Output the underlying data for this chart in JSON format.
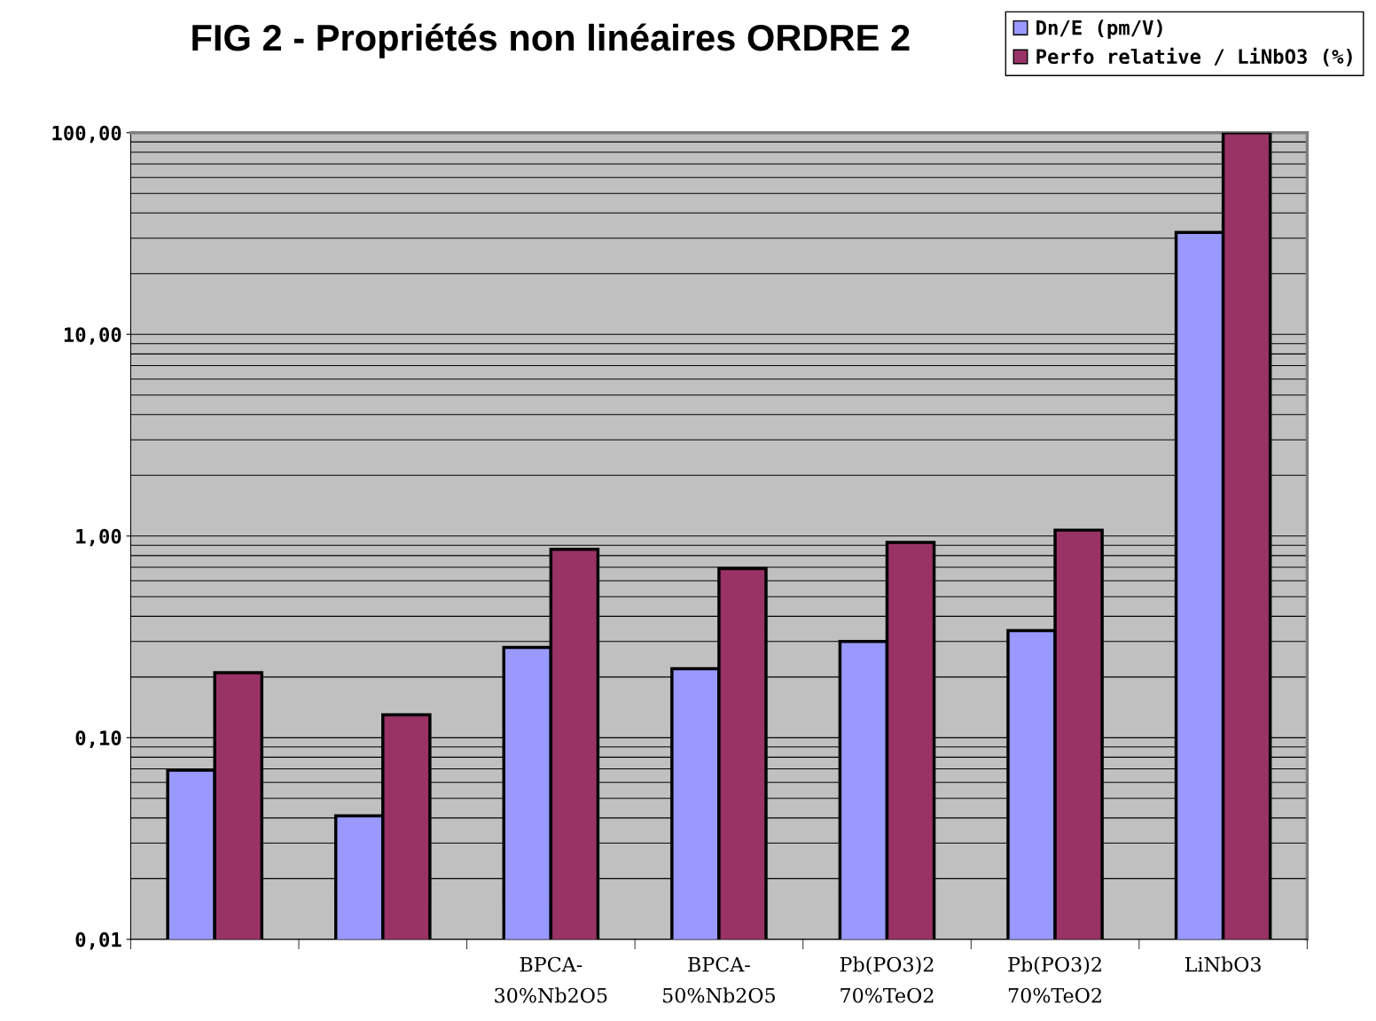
{
  "chart_data": {
    "type": "bar",
    "title": "FIG 2 - Propriétés non linéaires ORDRE 2",
    "categories": [
      null,
      null,
      "BPCA-\n30%Nb2O5",
      "BPCA-\n50%Nb2O5",
      "Pb(PO3)2\n70%TeO2",
      "Pb(PO3)2\n70%TeO2",
      "LiNbO3"
    ],
    "series": [
      {
        "name": "Dn/E (pm/V)",
        "color": "#9999ff",
        "values": [
          0.069,
          0.041,
          0.28,
          0.22,
          0.3,
          0.34,
          32
        ]
      },
      {
        "name": "Perfo relative / LiNbO3 (%)",
        "color": "#993366",
        "values": [
          0.21,
          0.13,
          0.86,
          0.69,
          0.93,
          1.07,
          100
        ]
      }
    ],
    "log": "y",
    "ylim": [
      0.01,
      100
    ],
    "yticks": [
      {
        "value": 0.01,
        "label": "0,01"
      },
      {
        "value": 0.1,
        "label": "0,10"
      },
      {
        "value": 1,
        "label": "1,00"
      },
      {
        "value": 10,
        "label": "10,00"
      },
      {
        "value": 100,
        "label": "100,00"
      }
    ],
    "grid": "y",
    "legend": "top right"
  }
}
